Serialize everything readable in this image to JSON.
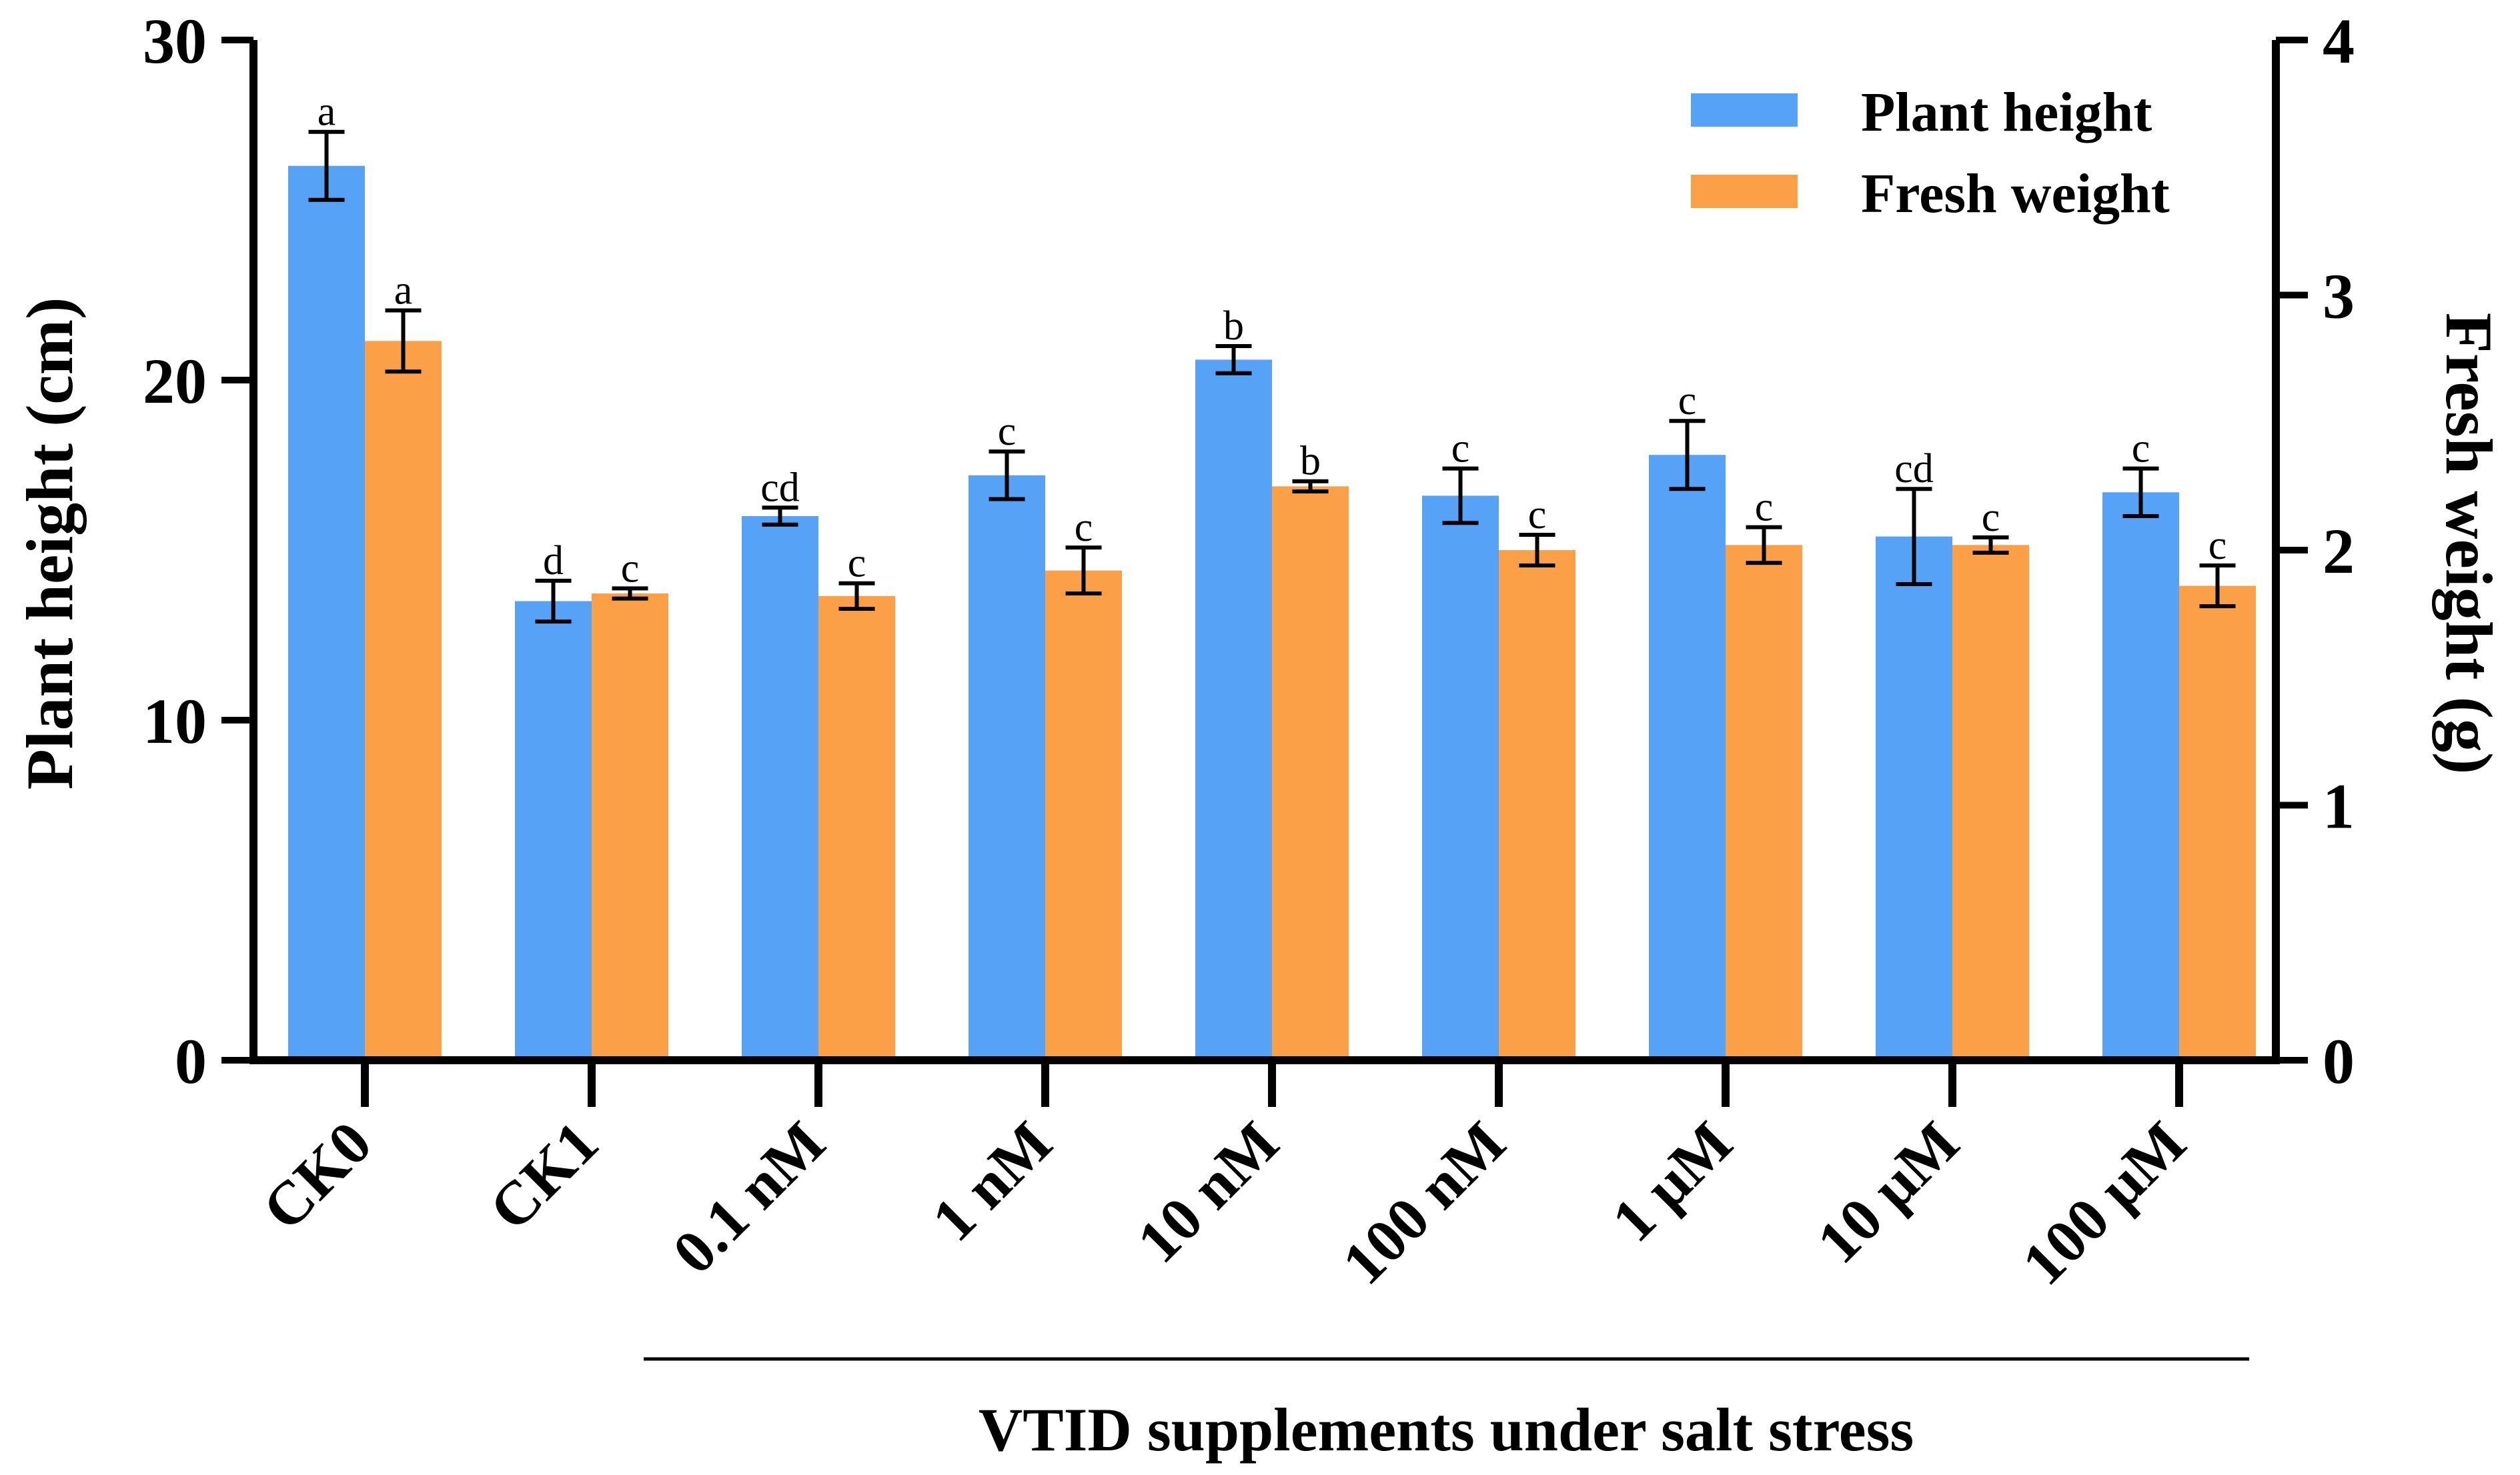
{
  "chart_data": {
    "type": "bar",
    "categories": [
      "CK0",
      "CK1",
      "0.1 nM",
      "1 nM",
      "10 nM",
      "100 nM",
      "1 μM",
      "10 μM",
      "100 μM"
    ],
    "series": [
      {
        "name": "Plant height",
        "axis": "left",
        "color": "#55a2f7",
        "values": [
          26.3,
          13.5,
          16.0,
          17.2,
          20.6,
          16.6,
          17.8,
          15.4,
          16.7
        ],
        "errors": [
          1.0,
          0.6,
          0.25,
          0.7,
          0.4,
          0.8,
          1.0,
          1.4,
          0.7
        ],
        "labels": [
          "a",
          "d",
          "cd",
          "c",
          "b",
          "c",
          "c",
          "cd",
          "c"
        ]
      },
      {
        "name": "Fresh weight",
        "axis": "right",
        "color": "#fca047",
        "values": [
          2.82,
          1.83,
          1.82,
          1.92,
          2.25,
          2.0,
          2.02,
          2.02,
          1.86
        ],
        "errors": [
          0.12,
          0.02,
          0.05,
          0.09,
          0.02,
          0.06,
          0.07,
          0.03,
          0.08
        ],
        "labels": [
          "a",
          "c",
          "c",
          "c",
          "b",
          "c",
          "c",
          "c",
          "c"
        ]
      }
    ],
    "ylabel": "Plant height (cm)",
    "ylabel_right": "Fresh weight (g)",
    "xlabel": "VTID supplements under salt stress",
    "ylim": [
      0,
      30
    ],
    "ylim_right": [
      0,
      4
    ],
    "yticks": [
      0,
      10,
      20,
      30
    ],
    "yticks_right": [
      0,
      1,
      2,
      3,
      4
    ],
    "legend_position": "top-right",
    "grid": false
  }
}
